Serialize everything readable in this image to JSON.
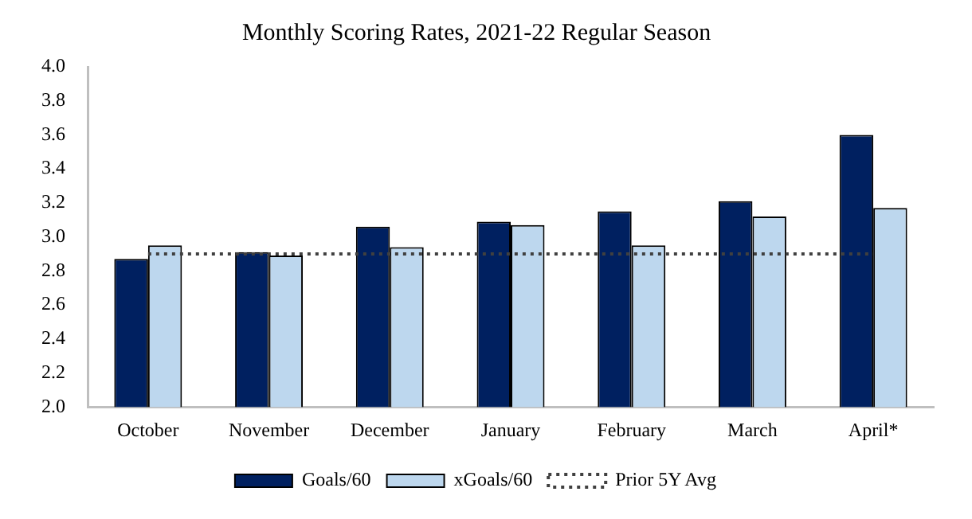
{
  "chart_data": {
    "type": "bar",
    "title": "Monthly Scoring Rates, 2021-22 Regular Season",
    "categories": [
      "October",
      "November",
      "December",
      "January",
      "February",
      "March",
      "April*"
    ],
    "series": [
      {
        "name": "Goals/60",
        "color": "#002060",
        "values": [
          2.87,
          2.91,
          3.06,
          3.09,
          3.15,
          3.21,
          3.6
        ]
      },
      {
        "name": "xGoals/60",
        "color": "#bdd7ee",
        "values": [
          2.95,
          2.89,
          2.94,
          3.07,
          2.95,
          3.12,
          3.17
        ]
      },
      {
        "name": "Prior 5Y Avg",
        "type": "line",
        "color": "#404040",
        "line_style": "dotted",
        "marker": "none",
        "values": [
          2.9,
          2.9,
          2.9,
          2.9,
          2.9,
          2.9,
          2.9
        ]
      }
    ],
    "ylim": [
      2.0,
      4.0
    ],
    "yticks": [
      {
        "value": 2.0,
        "label": "2.0"
      },
      {
        "value": 2.2,
        "label": "2.2"
      },
      {
        "value": 2.4,
        "label": "2.4"
      },
      {
        "value": 2.6,
        "label": "2.6"
      },
      {
        "value": 2.8,
        "label": "2.8"
      },
      {
        "value": 3.0,
        "label": "3.0"
      },
      {
        "value": 3.2,
        "label": "3.2"
      },
      {
        "value": 3.4,
        "label": "3.4"
      },
      {
        "value": 3.6,
        "label": "3.6"
      },
      {
        "value": 3.8,
        "label": "3.8"
      },
      {
        "value": 4.0,
        "label": "4.0"
      }
    ],
    "grid": false,
    "legend": "bottom"
  }
}
